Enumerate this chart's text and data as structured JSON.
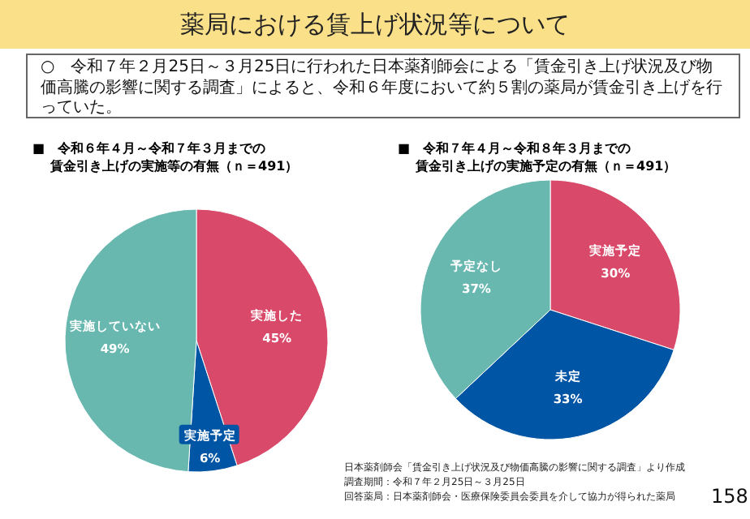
{
  "chart_data": [
    {
      "type": "other",
      "title": "薬局における賃上げ状況等について",
      "annotations": [
        "○　令和７年２月25日～３月25日に行われた日本薬剤師会による「賃金引き上げ状況及び物価高騰の影響に関する調査」によると、令和６年度において約５割の薬局が賃金引き上げを行っていた。",
        "日本薬剤師会「賃金引き上げ状況及び物価高騰の影響に関する調査」より作成",
        "調査期間：令和７年２月25日～３月25日",
        "回答薬局：日本薬剤師会・医療保険委員会委員を介して協力が得られた薬局",
        "158"
      ]
    },
    {
      "type": "pie",
      "title": "■　令和６年４月～令和７年３月までの",
      "subtitle": "賃金引き上げの実施等の有無（ｎ＝491）",
      "categories": [
        "実施した",
        "実施予定",
        "実施していない"
      ],
      "values": [
        45,
        6,
        49
      ],
      "value_labels": [
        "45%",
        "6%",
        "49%"
      ],
      "colors": [
        "#d9496a",
        "#0055a5",
        "#68b8b0"
      ]
    },
    {
      "type": "pie",
      "title": "■　令和７年４月～令和８年３月までの",
      "subtitle": "賃金引き上げの実施予定の有無（ｎ＝491）",
      "categories": [
        "実施予定",
        "未定",
        "予定なし"
      ],
      "values": [
        30,
        33,
        37
      ],
      "value_labels": [
        "30%",
        "33%",
        "37%"
      ],
      "colors": [
        "#d9496a",
        "#0055a5",
        "#68b8b0"
      ]
    }
  ]
}
